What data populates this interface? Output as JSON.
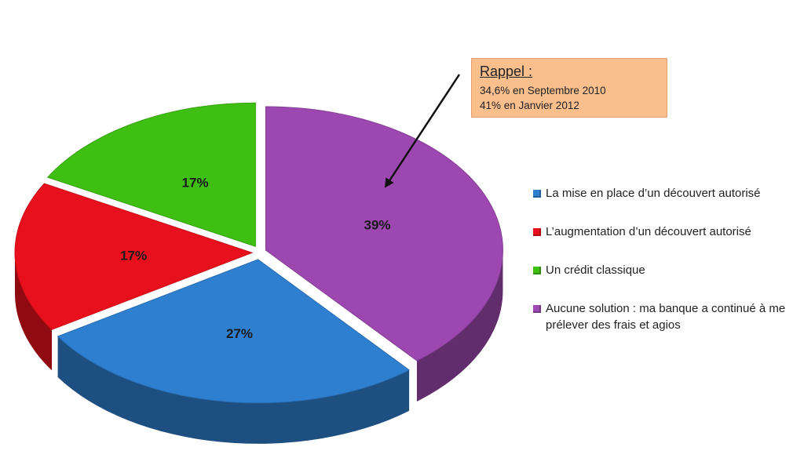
{
  "chart_data": {
    "type": "pie",
    "categories": [
      "La mise en place d’un découvert autorisé",
      "L’augmentation d’un découvert autorisé",
      "Un crédit classique",
      "Aucune solution : ma banque a continué à me prélever des frais et agios"
    ],
    "values": [
      27,
      17,
      17,
      39
    ],
    "value_labels": [
      "27%",
      "17%",
      "17%",
      "39%"
    ],
    "colors": [
      "#2f7fd0",
      "#e8101c",
      "#3fbf12",
      "#9c48b0"
    ],
    "legend_placement": "right",
    "legend": [
      {
        "text": "La mise en place d’un découvert autorisé",
        "color": "#2f7fd0"
      },
      {
        "text": "L’augmentation d’un découvert autorisé",
        "color": "#e8101c"
      },
      {
        "text": "Un crédit classique",
        "color": "#3fbf12"
      },
      {
        "text": "Aucune solution : ma banque a continué à me prélever des frais et agios",
        "color": "#9c48b0"
      }
    ]
  },
  "callout": {
    "title": "Rappel :",
    "lines": [
      "34,6% en Septembre  2010",
      "41% en Janvier 2012"
    ]
  }
}
